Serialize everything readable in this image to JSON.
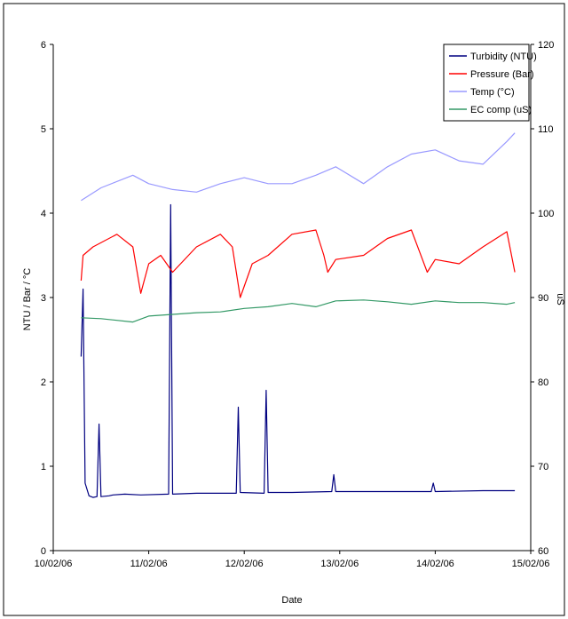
{
  "chart_data": {
    "type": "line",
    "xlabel": "Date",
    "ylabel_left": "NTU / Bar / °C",
    "ylabel_right": "uS",
    "x_ticks": [
      "10/02/06",
      "11/02/06",
      "12/02/06",
      "13/02/06",
      "14/02/06",
      "15/02/06"
    ],
    "xlim": [
      "10/02/06",
      "15/02/06"
    ],
    "ylim_left": [
      0,
      6
    ],
    "yticks_left": [
      "0",
      "1",
      "2",
      "3",
      "4",
      "5",
      "6"
    ],
    "ylim_right": [
      60,
      120
    ],
    "yticks_right": [
      "60",
      "70",
      "80",
      "90",
      "100",
      "110",
      "120"
    ],
    "grid": false,
    "legend_position": "top-right",
    "series": [
      {
        "name": "Turbidity (NTU)",
        "axis": "left",
        "color": "#000080",
        "x": [
          "10/02/06 07:00",
          "10/02/06 07:30",
          "10/02/06 08:00",
          "10/02/06 09:00",
          "10/02/06 10:00",
          "10/02/06 11:00",
          "10/02/06 11:30",
          "10/02/06 12:00",
          "10/02/06 14:00",
          "10/02/06 15:00",
          "10/02/06 18:00",
          "10/02/06 22:00",
          "11/02/06 05:00",
          "11/02/06 05:30",
          "11/02/06 06:00",
          "11/02/06 12:00",
          "11/02/06 22:00",
          "11/02/06 22:30",
          "11/02/06 23:00",
          "12/02/06 05:00",
          "12/02/06 05:30",
          "12/02/06 06:00",
          "12/02/06 12:00",
          "12/02/06 22:00",
          "12/02/06 22:30",
          "12/02/06 23:00",
          "13/02/06 12:00",
          "13/02/06 23:00",
          "13/02/06 23:30",
          "14/02/06 00:00",
          "14/02/06 12:00",
          "14/02/06 20:00"
        ],
        "y": [
          2.3,
          3.1,
          0.8,
          0.65,
          0.63,
          0.64,
          1.5,
          0.64,
          0.65,
          0.66,
          0.67,
          0.66,
          0.67,
          4.1,
          0.67,
          0.68,
          0.68,
          1.7,
          0.69,
          0.68,
          1.9,
          0.69,
          0.69,
          0.7,
          0.9,
          0.7,
          0.7,
          0.7,
          0.8,
          0.7,
          0.71,
          0.71
        ]
      },
      {
        "name": "Pressure (Bar)",
        "axis": "left",
        "color": "#ff0000",
        "x": [
          "10/02/06 07:00",
          "10/02/06 07:30",
          "10/02/06 10:00",
          "10/02/06 16:00",
          "10/02/06 20:00",
          "10/02/06 22:00",
          "11/02/06 00:00",
          "11/02/06 03:00",
          "11/02/06 06:00",
          "11/02/06 12:00",
          "11/02/06 18:00",
          "11/02/06 21:00",
          "11/02/06 23:00",
          "12/02/06 02:00",
          "12/02/06 06:00",
          "12/02/06 12:00",
          "12/02/06 18:00",
          "12/02/06 20:00",
          "12/02/06 21:00",
          "12/02/06 23:00",
          "13/02/06 06:00",
          "13/02/06 12:00",
          "13/02/06 18:00",
          "13/02/06 20:00",
          "13/02/06 22:00",
          "14/02/06 00:00",
          "14/02/06 06:00",
          "14/02/06 12:00",
          "14/02/06 18:00",
          "14/02/06 20:00"
        ],
        "y": [
          3.2,
          3.5,
          3.6,
          3.75,
          3.6,
          3.05,
          3.4,
          3.5,
          3.3,
          3.6,
          3.75,
          3.6,
          3.0,
          3.4,
          3.5,
          3.75,
          3.8,
          3.5,
          3.3,
          3.45,
          3.5,
          3.7,
          3.8,
          3.55,
          3.3,
          3.45,
          3.4,
          3.6,
          3.78,
          3.3
        ]
      },
      {
        "name": "Temp (°C)",
        "axis": "left",
        "color": "#9999ff",
        "x": [
          "10/02/06 07:00",
          "10/02/06 12:00",
          "10/02/06 20:00",
          "11/02/06 00:00",
          "11/02/06 06:00",
          "11/02/06 12:00",
          "11/02/06 18:00",
          "12/02/06 00:00",
          "12/02/06 06:00",
          "12/02/06 12:00",
          "12/02/06 18:00",
          "12/02/06 23:00",
          "13/02/06 06:00",
          "13/02/06 12:00",
          "13/02/06 18:00",
          "14/02/06 00:00",
          "14/02/06 06:00",
          "14/02/06 12:00",
          "14/02/06 18:00",
          "14/02/06 20:00"
        ],
        "y": [
          4.15,
          4.3,
          4.45,
          4.35,
          4.28,
          4.25,
          4.35,
          4.42,
          4.35,
          4.35,
          4.45,
          4.55,
          4.35,
          4.55,
          4.7,
          4.75,
          4.62,
          4.58,
          4.85,
          4.95
        ]
      },
      {
        "name": "EC comp (uS)",
        "axis": "right",
        "color": "#339966",
        "x": [
          "10/02/06 07:00",
          "10/02/06 12:00",
          "10/02/06 20:00",
          "11/02/06 00:00",
          "11/02/06 06:00",
          "11/02/06 12:00",
          "11/02/06 18:00",
          "12/02/06 00:00",
          "12/02/06 06:00",
          "12/02/06 12:00",
          "12/02/06 18:00",
          "12/02/06 23:00",
          "13/02/06 06:00",
          "13/02/06 12:00",
          "13/02/06 18:00",
          "14/02/06 00:00",
          "14/02/06 06:00",
          "14/02/06 12:00",
          "14/02/06 18:00",
          "14/02/06 20:00"
        ],
        "y": [
          87.6,
          87.5,
          87.1,
          87.8,
          88.0,
          88.2,
          88.3,
          88.7,
          88.9,
          89.3,
          88.9,
          89.6,
          89.7,
          89.5,
          89.2,
          89.6,
          89.4,
          89.4,
          89.2,
          89.4
        ]
      }
    ]
  }
}
